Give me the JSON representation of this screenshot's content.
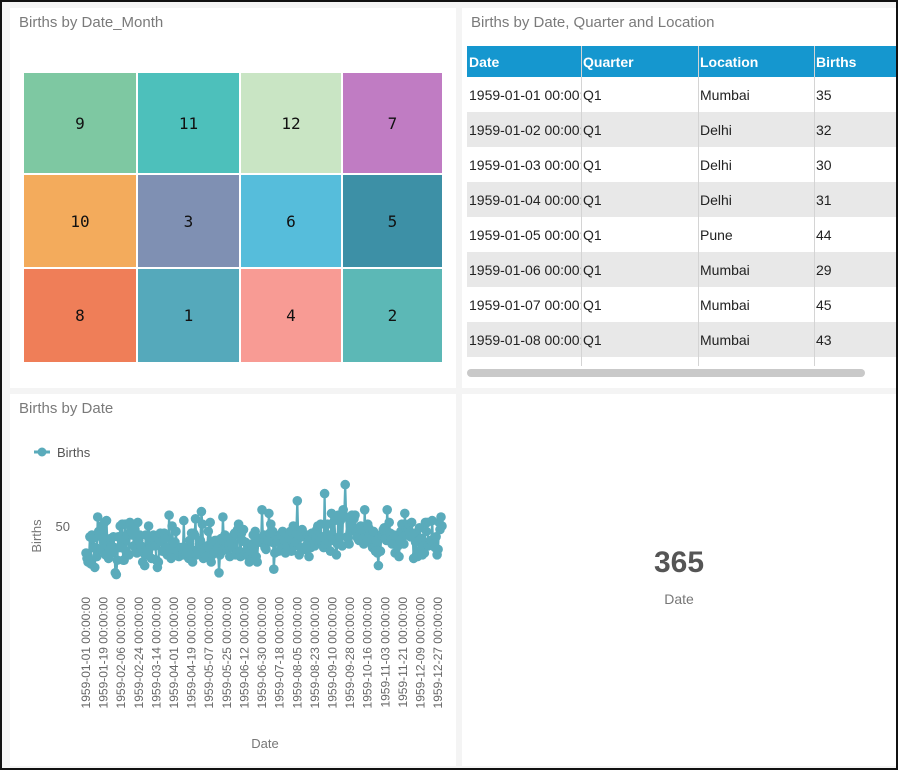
{
  "treemap": {
    "title": "Births by Date_Month",
    "cells": [
      {
        "label": "9",
        "color": "#7ec8a2"
      },
      {
        "label": "11",
        "color": "#4dc0bb"
      },
      {
        "label": "12",
        "color": "#c9e5c4"
      },
      {
        "label": "7",
        "color": "#c07cc3"
      },
      {
        "label": "10",
        "color": "#f3ab5c"
      },
      {
        "label": "3",
        "color": "#7f90b3"
      },
      {
        "label": "6",
        "color": "#56bddb"
      },
      {
        "label": "5",
        "color": "#3d90a6"
      },
      {
        "label": "8",
        "color": "#ef7e58"
      },
      {
        "label": "1",
        "color": "#55a9bb"
      },
      {
        "label": "4",
        "color": "#f89b94"
      },
      {
        "label": "2",
        "color": "#5cb8b6"
      }
    ]
  },
  "table": {
    "title": "Births by Date, Quarter and Location",
    "columns": [
      "Date",
      "Quarter",
      "Location",
      "Births"
    ],
    "rows": [
      [
        "1959-01-01 00:00:00",
        "Q1",
        "Mumbai",
        "35"
      ],
      [
        "1959-01-02 00:00:00",
        "Q1",
        "Delhi",
        "32"
      ],
      [
        "1959-01-03 00:00:00",
        "Q1",
        "Delhi",
        "30"
      ],
      [
        "1959-01-04 00:00:00",
        "Q1",
        "Delhi",
        "31"
      ],
      [
        "1959-01-05 00:00:00",
        "Q1",
        "Pune",
        "44"
      ],
      [
        "1959-01-06 00:00:00",
        "Q1",
        "Mumbai",
        "29"
      ],
      [
        "1959-01-07 00:00:00",
        "Q1",
        "Mumbai",
        "45"
      ],
      [
        "1959-01-08 00:00:00",
        "Q1",
        "Mumbai",
        "43"
      ]
    ],
    "header_color": "#1597cf"
  },
  "chart_data": {
    "type": "line",
    "title": "Births by Date",
    "xlabel": "Date",
    "ylabel": "Births",
    "series": [
      {
        "name": "Births",
        "color": "#5aabbb",
        "x": [
          "1959-01-01",
          "1959-01-02",
          "1959-01-03",
          "1959-01-04",
          "1959-01-05",
          "1959-01-06",
          "1959-01-07",
          "1959-01-08",
          "1959-01-09",
          "1959-01-10",
          "1959-01-11",
          "1959-01-12",
          "1959-01-13",
          "1959-01-14",
          "1959-01-15",
          "1959-01-16",
          "1959-01-17",
          "1959-01-18",
          "1959-01-19",
          "1959-01-20",
          "1959-01-21",
          "1959-01-22",
          "1959-01-23",
          "1959-01-24",
          "1959-01-25",
          "1959-01-26",
          "1959-01-27",
          "1959-01-28",
          "1959-01-29",
          "1959-01-30",
          "1959-01-31",
          "1959-02-01",
          "1959-02-02",
          "1959-02-03",
          "1959-02-04",
          "1959-02-05",
          "1959-02-06",
          "1959-02-07",
          "1959-02-08",
          "1959-02-09",
          "1959-02-10",
          "1959-02-11",
          "1959-02-12",
          "1959-02-13",
          "1959-02-14",
          "1959-02-15",
          "1959-02-16",
          "1959-02-17",
          "1959-02-18",
          "1959-02-19",
          "1959-02-20",
          "1959-02-21",
          "1959-02-22",
          "1959-02-23",
          "1959-02-24",
          "1959-02-25",
          "1959-02-26",
          "1959-02-27",
          "1959-02-28",
          "1959-03-01",
          "1959-03-02",
          "1959-03-03",
          "1959-03-04",
          "1959-03-05",
          "1959-03-06",
          "1959-03-07",
          "1959-03-08",
          "1959-03-09",
          "1959-03-10",
          "1959-03-11",
          "1959-03-12",
          "1959-03-13",
          "1959-03-14",
          "1959-03-15",
          "1959-03-16",
          "1959-03-17",
          "1959-03-18",
          "1959-03-19",
          "1959-03-20",
          "1959-03-21",
          "1959-03-22",
          "1959-03-23",
          "1959-03-24",
          "1959-03-25",
          "1959-03-26",
          "1959-03-27",
          "1959-03-28",
          "1959-03-29",
          "1959-03-30",
          "1959-03-31",
          "1959-04-01",
          "1959-04-02",
          "1959-04-03",
          "1959-04-04",
          "1959-04-05",
          "1959-04-06",
          "1959-04-07",
          "1959-04-08",
          "1959-04-09",
          "1959-04-10",
          "1959-04-11",
          "1959-04-12",
          "1959-04-13",
          "1959-04-14",
          "1959-04-15",
          "1959-04-16",
          "1959-04-17",
          "1959-04-18",
          "1959-04-19",
          "1959-04-20",
          "1959-04-21",
          "1959-04-22",
          "1959-04-23",
          "1959-04-24",
          "1959-04-25",
          "1959-04-26",
          "1959-04-27",
          "1959-04-28",
          "1959-04-29",
          "1959-04-30",
          "1959-05-01",
          "1959-05-02",
          "1959-05-03",
          "1959-05-04",
          "1959-05-05",
          "1959-05-06",
          "1959-05-07",
          "1959-05-08",
          "1959-05-09",
          "1959-05-10",
          "1959-05-11",
          "1959-05-12",
          "1959-05-13",
          "1959-05-14",
          "1959-05-15",
          "1959-05-16",
          "1959-05-17",
          "1959-05-18",
          "1959-05-19",
          "1959-05-20",
          "1959-05-21",
          "1959-05-22",
          "1959-05-23",
          "1959-05-24",
          "1959-05-25",
          "1959-05-26",
          "1959-05-27",
          "1959-05-28",
          "1959-05-29",
          "1959-05-30",
          "1959-05-31",
          "1959-06-01",
          "1959-06-02",
          "1959-06-03",
          "1959-06-04",
          "1959-06-05",
          "1959-06-06",
          "1959-06-07",
          "1959-06-08",
          "1959-06-09",
          "1959-06-10",
          "1959-06-11",
          "1959-06-12",
          "1959-06-13",
          "1959-06-14",
          "1959-06-15",
          "1959-06-16",
          "1959-06-17",
          "1959-06-18",
          "1959-06-19",
          "1959-06-20",
          "1959-06-21",
          "1959-06-22",
          "1959-06-23",
          "1959-06-24",
          "1959-06-25",
          "1959-06-26",
          "1959-06-27",
          "1959-06-28",
          "1959-06-29",
          "1959-06-30",
          "1959-07-01",
          "1959-07-02",
          "1959-07-03",
          "1959-07-04",
          "1959-07-05",
          "1959-07-06",
          "1959-07-07",
          "1959-07-08",
          "1959-07-09",
          "1959-07-10",
          "1959-07-11",
          "1959-07-12",
          "1959-07-13",
          "1959-07-14",
          "1959-07-15",
          "1959-07-16",
          "1959-07-17",
          "1959-07-18",
          "1959-07-19",
          "1959-07-20",
          "1959-07-21",
          "1959-07-22",
          "1959-07-23",
          "1959-07-24",
          "1959-07-25",
          "1959-07-26",
          "1959-07-27",
          "1959-07-28",
          "1959-07-29",
          "1959-07-30",
          "1959-07-31",
          "1959-08-01",
          "1959-08-02",
          "1959-08-03",
          "1959-08-04",
          "1959-08-05",
          "1959-08-06",
          "1959-08-07",
          "1959-08-08",
          "1959-08-09",
          "1959-08-10",
          "1959-08-11",
          "1959-08-12",
          "1959-08-13",
          "1959-08-14",
          "1959-08-15",
          "1959-08-16",
          "1959-08-17",
          "1959-08-18",
          "1959-08-19",
          "1959-08-20",
          "1959-08-21",
          "1959-08-22",
          "1959-08-23",
          "1959-08-24",
          "1959-08-25",
          "1959-08-26",
          "1959-08-27",
          "1959-08-28",
          "1959-08-29",
          "1959-08-30",
          "1959-08-31",
          "1959-09-01",
          "1959-09-02",
          "1959-09-03",
          "1959-09-04",
          "1959-09-05",
          "1959-09-06",
          "1959-09-07",
          "1959-09-08",
          "1959-09-09",
          "1959-09-10",
          "1959-09-11",
          "1959-09-12",
          "1959-09-13",
          "1959-09-14",
          "1959-09-15",
          "1959-09-16",
          "1959-09-17",
          "1959-09-18",
          "1959-09-19",
          "1959-09-20",
          "1959-09-21",
          "1959-09-22",
          "1959-09-23",
          "1959-09-24",
          "1959-09-25",
          "1959-09-26",
          "1959-09-27",
          "1959-09-28",
          "1959-09-29",
          "1959-09-30",
          "1959-10-01",
          "1959-10-02",
          "1959-10-03",
          "1959-10-04",
          "1959-10-05",
          "1959-10-06",
          "1959-10-07",
          "1959-10-08",
          "1959-10-09",
          "1959-10-10",
          "1959-10-11",
          "1959-10-12",
          "1959-10-13",
          "1959-10-14",
          "1959-10-15",
          "1959-10-16",
          "1959-10-17",
          "1959-10-18",
          "1959-10-19",
          "1959-10-20",
          "1959-10-21",
          "1959-10-22",
          "1959-10-23",
          "1959-10-24",
          "1959-10-25",
          "1959-10-26",
          "1959-10-27",
          "1959-10-28",
          "1959-10-29",
          "1959-10-30",
          "1959-10-31",
          "1959-11-01",
          "1959-11-02",
          "1959-11-03",
          "1959-11-04",
          "1959-11-05",
          "1959-11-06",
          "1959-11-07",
          "1959-11-08",
          "1959-11-09",
          "1959-11-10",
          "1959-11-11",
          "1959-11-12",
          "1959-11-13",
          "1959-11-14",
          "1959-11-15",
          "1959-11-16",
          "1959-11-17",
          "1959-11-18",
          "1959-11-19",
          "1959-11-20",
          "1959-11-21",
          "1959-11-22",
          "1959-11-23",
          "1959-11-24",
          "1959-11-25",
          "1959-11-26",
          "1959-11-27",
          "1959-11-28",
          "1959-11-29",
          "1959-11-30",
          "1959-12-01",
          "1959-12-02",
          "1959-12-03",
          "1959-12-04",
          "1959-12-05",
          "1959-12-06",
          "1959-12-07",
          "1959-12-08",
          "1959-12-09",
          "1959-12-10",
          "1959-12-11",
          "1959-12-12",
          "1959-12-13",
          "1959-12-14",
          "1959-12-15",
          "1959-12-16",
          "1959-12-17",
          "1959-12-18",
          "1959-12-19",
          "1959-12-20",
          "1959-12-21",
          "1959-12-22",
          "1959-12-23",
          "1959-12-24",
          "1959-12-25",
          "1959-12-26",
          "1959-12-27",
          "1959-12-28",
          "1959-12-29",
          "1959-12-30",
          "1959-12-31"
        ],
        "values": [
          35,
          32,
          30,
          31,
          44,
          29,
          45,
          43,
          38,
          27,
          38,
          33,
          55,
          47,
          45,
          37,
          50,
          43,
          41,
          52,
          34,
          53,
          39,
          32,
          37,
          43,
          39,
          35,
          44,
          38,
          24,
          23,
          31,
          44,
          38,
          50,
          38,
          51,
          31,
          31,
          51,
          36,
          45,
          51,
          34,
          52,
          47,
          45,
          46,
          39,
          48,
          37,
          35,
          52,
          42,
          45,
          39,
          37,
          30,
          35,
          28,
          45,
          34,
          36,
          50,
          44,
          39,
          32,
          39,
          45,
          43,
          39,
          31,
          27,
          30,
          42,
          46,
          41,
          36,
          45,
          46,
          43,
          38,
          34,
          35,
          56,
          36,
          32,
          50,
          41,
          39,
          41,
          47,
          34,
          36,
          33,
          35,
          38,
          38,
          34,
          53,
          34,
          34,
          38,
          35,
          32,
          42,
          34,
          46,
          30,
          46,
          45,
          54,
          34,
          37,
          35,
          40,
          42,
          58,
          51,
          32,
          35,
          38,
          33,
          39,
          47,
          38,
          52,
          30,
          34,
          40,
          35,
          42,
          41,
          42,
          38,
          24,
          34,
          43,
          36,
          55,
          41,
          45,
          41,
          37,
          43,
          39,
          33,
          43,
          40,
          38,
          45,
          46,
          34,
          35,
          48,
          51,
          36,
          33,
          46,
          42,
          48,
          34,
          41,
          35,
          40,
          34,
          30,
          36,
          40,
          39,
          45,
          38,
          47,
          33,
          30,
          42,
          43,
          41,
          41,
          59,
          43,
          45,
          38,
          37,
          45,
          42,
          57,
          46,
          51,
          41,
          47,
          26,
          35,
          44,
          41,
          42,
          36,
          45,
          45,
          45,
          47,
          38,
          42,
          35,
          36,
          39,
          45,
          43,
          47,
          36,
          41,
          50,
          39,
          41,
          46,
          64,
          45,
          34,
          38,
          44,
          48,
          46,
          44,
          37,
          39,
          44,
          45,
          33,
          44,
          38,
          46,
          46,
          40,
          39,
          44,
          48,
          50,
          41,
          42,
          51,
          41,
          44,
          38,
          68,
          40,
          42,
          51,
          44,
          45,
          36,
          57,
          44,
          42,
          53,
          42,
          34,
          40,
          56,
          44,
          53,
          55,
          39,
          59,
          55,
          73,
          55,
          44,
          43,
          40,
          47,
          51,
          56,
          49,
          54,
          56,
          47,
          44,
          43,
          42,
          45,
          50,
          48,
          43,
          40,
          59,
          41,
          42,
          51,
          49,
          45,
          43,
          42,
          38,
          47,
          38,
          36,
          42,
          35,
          28,
          44,
          36,
          45,
          46,
          48,
          49,
          43,
          42,
          59,
          45,
          52,
          46,
          42,
          40,
          40,
          45,
          35,
          35,
          40,
          39,
          33,
          42,
          47,
          51,
          44,
          40,
          57,
          49,
          45,
          49,
          51,
          46,
          44,
          52,
          45,
          32,
          46,
          41,
          34,
          33,
          36,
          49,
          43,
          43,
          34,
          39,
          35,
          52,
          47,
          52,
          39,
          40,
          42,
          42,
          53,
          39,
          40,
          38,
          44,
          34,
          37,
          52,
          48,
          55,
          50
        ]
      }
    ],
    "ylim": [
      20,
      80
    ],
    "yticks": [
      50
    ],
    "xticks": [
      "1959-01-01 00:00:00",
      "1959-01-19 00:00:00",
      "1959-02-06 00:00:00",
      "1959-02-24 00:00:00",
      "1959-03-14 00:00:00",
      "1959-04-01 00:00:00",
      "1959-04-19 00:00:00",
      "1959-05-07 00:00:00",
      "1959-05-25 00:00:00",
      "1959-06-12 00:00:00",
      "1959-06-30 00:00:00",
      "1959-07-18 00:00:00",
      "1959-08-05 00:00:00",
      "1959-08-23 00:00:00",
      "1959-09-10 00:00:00",
      "1959-09-28 00:00:00",
      "1959-10-16 00:00:00",
      "1959-11-03 00:00:00",
      "1959-11-21 00:00:00",
      "1959-12-09 00:00:00",
      "1959-12-27 00:00:00"
    ],
    "legend": "top-left",
    "grid": false
  },
  "kpi": {
    "value": "365",
    "label": "Date"
  }
}
